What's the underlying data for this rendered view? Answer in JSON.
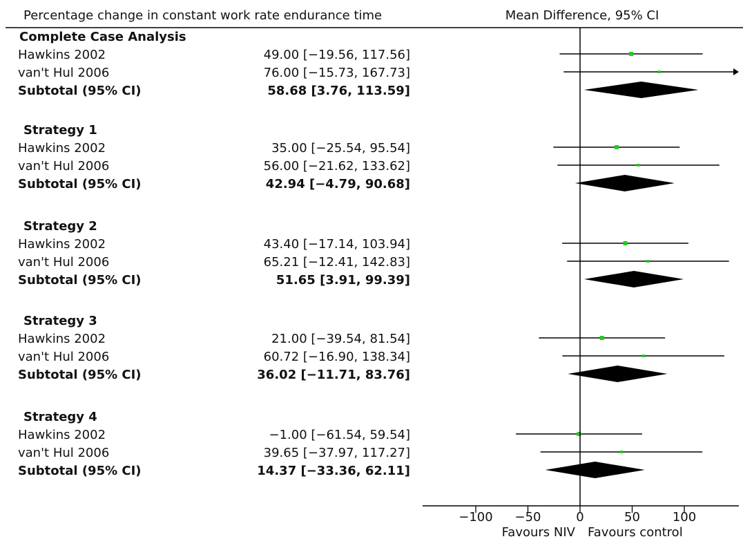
{
  "chart_data": {
    "type": "forest",
    "left_header": "Percentage change in constant work rate endurance time",
    "right_header": "Mean Difference, 95% CI",
    "xlim": [
      -150,
      150
    ],
    "xticks": [
      -100,
      -50,
      0,
      50,
      100
    ],
    "tick_labels": [
      "−100",
      "−50",
      "0",
      "50",
      "100"
    ],
    "favours_left": "Favours NIV",
    "favours_right": "Favours control",
    "groups": [
      {
        "title": "Complete Case Analysis",
        "studies": [
          {
            "name": "Hawkins 2002",
            "label": "49.00 [−19.56, 117.56]",
            "mean": 49.0,
            "lo": -19.56,
            "hi": 117.56
          },
          {
            "name": "van't Hul 2006",
            "label": "76.00 [−15.73, 167.73]",
            "mean": 76.0,
            "lo": -15.73,
            "hi": 167.73
          }
        ],
        "subtotal": {
          "name": "Subtotal (95% CI)",
          "label": "58.68 [3.76, 113.59]",
          "mean": 58.68,
          "lo": 3.76,
          "hi": 113.59
        }
      },
      {
        "title": "Strategy 1",
        "studies": [
          {
            "name": "Hawkins 2002",
            "label": "35.00 [−25.54, 95.54]",
            "mean": 35.0,
            "lo": -25.54,
            "hi": 95.54
          },
          {
            "name": "van't Hul 2006",
            "label": "56.00 [−21.62, 133.62]",
            "mean": 56.0,
            "lo": -21.62,
            "hi": 133.62
          }
        ],
        "subtotal": {
          "name": "Subtotal (95% CI)",
          "label": "42.94 [−4.79, 90.68]",
          "mean": 42.94,
          "lo": -4.79,
          "hi": 90.68
        }
      },
      {
        "title": "Strategy 2",
        "studies": [
          {
            "name": "Hawkins 2002",
            "label": "43.40 [−17.14, 103.94]",
            "mean": 43.4,
            "lo": -17.14,
            "hi": 103.94
          },
          {
            "name": "van't Hul 2006",
            "label": "65.21 [−12.41, 142.83]",
            "mean": 65.21,
            "lo": -12.41,
            "hi": 142.83
          }
        ],
        "subtotal": {
          "name": "Subtotal (95% CI)",
          "label": "51.65 [3.91, 99.39]",
          "mean": 51.65,
          "lo": 3.91,
          "hi": 99.39
        }
      },
      {
        "title": "Strategy 3",
        "studies": [
          {
            "name": "Hawkins 2002",
            "label": "21.00 [−39.54, 81.54]",
            "mean": 21.0,
            "lo": -39.54,
            "hi": 81.54
          },
          {
            "name": "van't Hul 2006",
            "label": "60.72 [−16.90, 138.34]",
            "mean": 60.72,
            "lo": -16.9,
            "hi": 138.34
          }
        ],
        "subtotal": {
          "name": "Subtotal (95% CI)",
          "label": "36.02 [−11.71, 83.76]",
          "mean": 36.02,
          "lo": -11.71,
          "hi": 83.76
        }
      },
      {
        "title": "Strategy 4",
        "studies": [
          {
            "name": "Hawkins 2002",
            "label": "−1.00 [−61.54, 59.54]",
            "mean": -1.0,
            "lo": -61.54,
            "hi": 59.54
          },
          {
            "name": "van't Hul 2006",
            "label": "39.65 [−37.97, 117.27]",
            "mean": 39.65,
            "lo": -37.97,
            "hi": 117.27
          }
        ],
        "subtotal": {
          "name": "Subtotal (95% CI)",
          "label": "14.37 [−33.36, 62.11]",
          "mean": 14.37,
          "lo": -33.36,
          "hi": 62.11
        }
      }
    ],
    "colors": {
      "marker": "#22cc22",
      "line": "#000000",
      "diamond": "#000000"
    }
  }
}
